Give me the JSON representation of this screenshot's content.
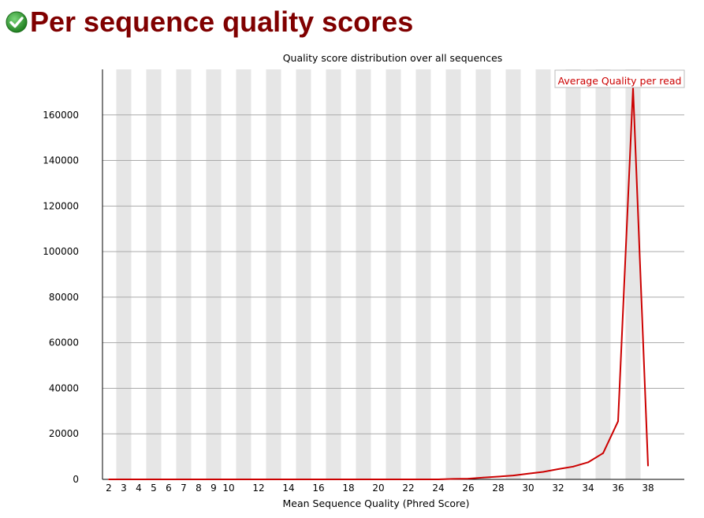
{
  "header": {
    "title": "Per sequence quality scores",
    "status_icon": "check-circle-icon",
    "status_color": "#2e9a2e"
  },
  "chart_data": {
    "type": "line",
    "title": "Quality score distribution over all sequences",
    "xlabel": "Mean Sequence Quality (Phred Score)",
    "ylabel": "",
    "xlim": [
      2,
      38
    ],
    "ylim": [
      0,
      180000
    ],
    "x_ticks": [
      "2",
      "3",
      "4",
      "5",
      "6",
      "7",
      "8",
      "9",
      "10",
      "12",
      "14",
      "16",
      "18",
      "20",
      "22",
      "24",
      "26",
      "28",
      "30",
      "32",
      "34",
      "36",
      "38"
    ],
    "y_ticks": [
      "0",
      "20000",
      "40000",
      "60000",
      "80000",
      "100000",
      "120000",
      "140000",
      "160000"
    ],
    "grid": true,
    "legend_position": "top-right",
    "series": [
      {
        "name": "Average Quality per read",
        "color": "#cc0000",
        "x": [
          2,
          3,
          4,
          5,
          6,
          7,
          8,
          9,
          10,
          11,
          12,
          13,
          14,
          15,
          16,
          17,
          18,
          19,
          20,
          21,
          22,
          23,
          24,
          25,
          26,
          27,
          28,
          29,
          30,
          31,
          32,
          33,
          34,
          35,
          36,
          37,
          38
        ],
        "values": [
          0,
          0,
          0,
          0,
          0,
          0,
          0,
          0,
          0,
          0,
          0,
          0,
          0,
          0,
          0,
          0,
          0,
          0,
          0,
          0,
          0,
          0,
          0,
          200,
          300,
          800,
          1200,
          1700,
          2500,
          3300,
          4500,
          5600,
          7500,
          11500,
          25500,
          172000,
          6000
        ]
      }
    ]
  }
}
